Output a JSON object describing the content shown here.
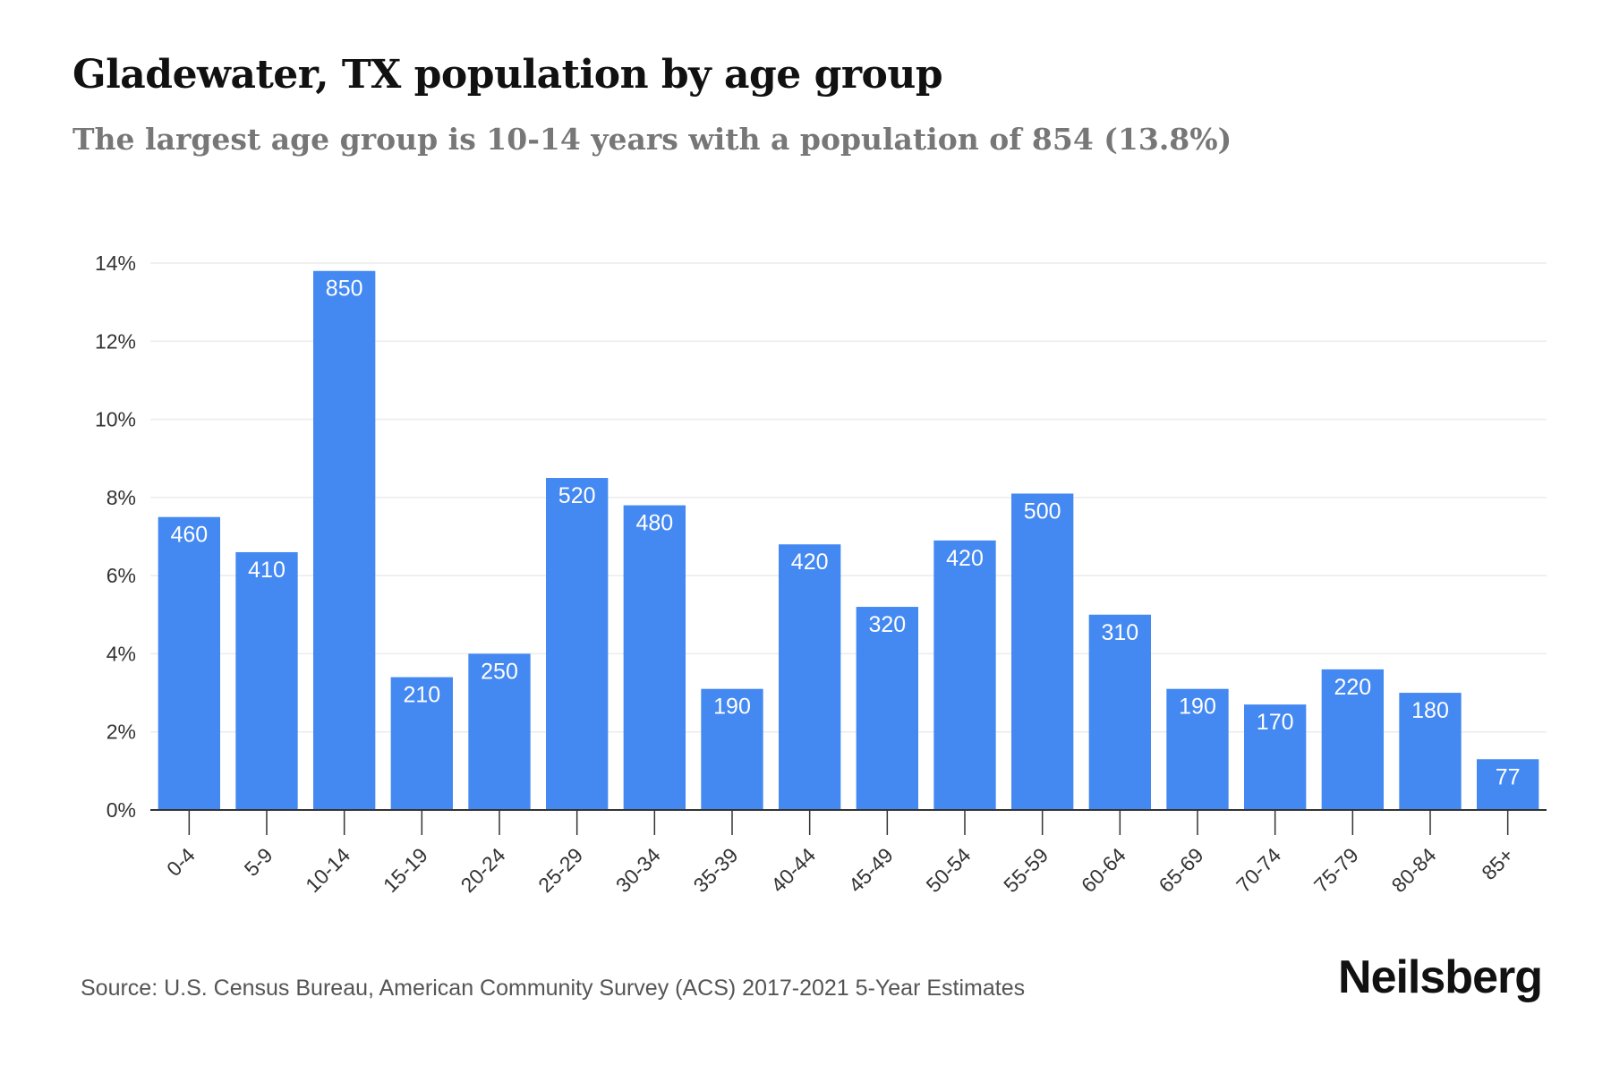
{
  "header": {
    "title": "Gladewater, TX population by age group",
    "subtitle": "The largest age group is 10-14 years with a population of 854 (13.8%)"
  },
  "footer": {
    "source": "Source: U.S. Census Bureau, American Community Survey (ACS) 2017-2021 5-Year Estimates",
    "brand": "Neilsberg"
  },
  "colors": {
    "bar": "#4488f2",
    "grid": "#ececec",
    "axis": "#333333"
  },
  "chart_data": {
    "type": "bar",
    "title": "Gladewater, TX population by age group",
    "subtitle": "The largest age group is 10-14 years with a population of 854 (13.8%)",
    "xlabel": "",
    "ylabel": "",
    "categories": [
      "0-4",
      "5-9",
      "10-14",
      "15-19",
      "20-24",
      "25-29",
      "30-34",
      "35-39",
      "40-44",
      "45-49",
      "50-54",
      "55-59",
      "60-64",
      "65-69",
      "70-74",
      "75-79",
      "80-84",
      "85+"
    ],
    "values": [
      7.5,
      6.6,
      13.8,
      3.4,
      4.0,
      8.5,
      7.8,
      3.1,
      6.8,
      5.2,
      6.9,
      8.1,
      5.0,
      3.1,
      2.7,
      3.6,
      3.0,
      1.3
    ],
    "bar_labels": [
      "460",
      "410",
      "850",
      "210",
      "250",
      "520",
      "480",
      "190",
      "420",
      "320",
      "420",
      "500",
      "310",
      "190",
      "170",
      "220",
      "180",
      "77"
    ],
    "y_unit": "%",
    "ylim": [
      0,
      14
    ],
    "y_ticks": [
      0,
      2,
      4,
      6,
      8,
      10,
      12,
      14
    ],
    "y_tick_labels": [
      "0%",
      "2%",
      "4%",
      "6%",
      "8%",
      "10%",
      "12%",
      "14%"
    ],
    "grid": true,
    "legend": "none"
  }
}
